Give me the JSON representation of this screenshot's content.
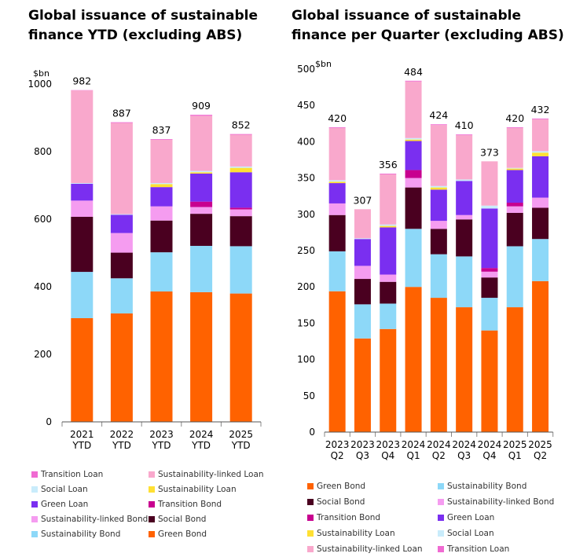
{
  "colors": {
    "Green Bond": "#ff6200",
    "Sustainability Bond": "#8dd8f8",
    "Social Bond": "#4a0020",
    "Sustainability-linked Bond": "#f59cf0",
    "Transition Bond": "#c8008f",
    "Green Loan": "#7a2ff0",
    "Sustainability Loan": "#ffe033",
    "Social Loan": "#c9ecfb",
    "Sustainability-linked Loan": "#f9a8cc",
    "Transition Loan": "#f06bd2"
  },
  "chart_data": [
    {
      "type": "bar",
      "stacked": true,
      "title": "Global issuance of sustainable finance YTD (excluding ABS)",
      "unit_label": "$bn",
      "categories": [
        [
          "2021",
          "YTD"
        ],
        [
          "2022",
          "YTD"
        ],
        [
          "2023",
          "YTD"
        ],
        [
          "2024",
          "YTD"
        ],
        [
          "2025",
          "YTD"
        ]
      ],
      "totals": [
        "982",
        "887",
        "837",
        "909",
        "852"
      ],
      "ylim": [
        0,
        1000
      ],
      "yticks": [
        0,
        200,
        400,
        600,
        800,
        1000
      ],
      "series": [
        {
          "name": "Green Bond",
          "values": [
            307,
            321,
            386,
            384,
            380
          ]
        },
        {
          "name": "Sustainability Bond",
          "values": [
            137,
            104,
            116,
            137,
            140
          ]
        },
        {
          "name": "Social Bond",
          "values": [
            163,
            76,
            94,
            95,
            89
          ]
        },
        {
          "name": "Sustainability-linked Bond",
          "values": [
            48,
            58,
            42,
            20,
            20
          ]
        },
        {
          "name": "Transition Bond",
          "values": [
            0,
            0,
            0,
            16,
            5
          ]
        },
        {
          "name": "Green Loan",
          "values": [
            50,
            54,
            57,
            83,
            105
          ]
        },
        {
          "name": "Sustainability Loan",
          "values": [
            0,
            0,
            9,
            4,
            13
          ]
        },
        {
          "name": "Social Loan",
          "values": [
            2,
            2,
            3,
            4,
            4
          ]
        },
        {
          "name": "Sustainability-linked Loan",
          "values": [
            274,
            270,
            128,
            163,
            94
          ]
        },
        {
          "name": "Transition Loan",
          "values": [
            1,
            2,
            2,
            3,
            2
          ]
        }
      ],
      "legend_title_order": [
        [
          "Transition Loan",
          "Sustainability-linked Loan"
        ],
        [
          "Social Loan",
          "Sustainability Loan"
        ],
        [
          "Green Loan",
          "Transition Bond"
        ],
        [
          "Sustainability-linked Bond",
          "Social Bond"
        ],
        [
          "Sustainability Bond",
          "Green Bond"
        ]
      ]
    },
    {
      "type": "bar",
      "stacked": true,
      "title": "Global issuance of sustainable finance per Quarter (excluding ABS)",
      "unit_label": "$bn",
      "categories": [
        [
          "2023",
          "Q2"
        ],
        [
          "2023",
          "Q3"
        ],
        [
          "2023",
          "Q4"
        ],
        [
          "2024",
          "Q1"
        ],
        [
          "2024",
          "Q2"
        ],
        [
          "2024",
          "Q3"
        ],
        [
          "2024",
          "Q4"
        ],
        [
          "2025",
          "Q1"
        ],
        [
          "2025",
          "Q2"
        ]
      ],
      "totals": [
        "420",
        "307",
        "356",
        "484",
        "424",
        "410",
        "373",
        "420",
        "432"
      ],
      "ylim": [
        0,
        500
      ],
      "yticks": [
        0,
        50,
        100,
        150,
        200,
        250,
        300,
        350,
        400,
        450,
        500
      ],
      "series": [
        {
          "name": "Green Bond",
          "values": [
            194,
            129,
            142,
            200,
            185,
            172,
            140,
            172,
            208
          ]
        },
        {
          "name": "Sustainability Bond",
          "values": [
            55,
            47,
            35,
            80,
            60,
            70,
            45,
            84,
            58
          ]
        },
        {
          "name": "Social Bond",
          "values": [
            50,
            35,
            30,
            57,
            35,
            51,
            28,
            46,
            43
          ]
        },
        {
          "name": "Sustainability-linked Bond",
          "values": [
            16,
            18,
            10,
            13,
            11,
            6,
            8,
            9,
            14
          ]
        },
        {
          "name": "Transition Bond",
          "values": [
            0,
            0,
            0,
            11,
            0,
            0,
            5,
            5,
            0
          ]
        },
        {
          "name": "Green Loan",
          "values": [
            28,
            37,
            65,
            40,
            43,
            47,
            82,
            45,
            57
          ]
        },
        {
          "name": "Sustainability Loan",
          "values": [
            2,
            0,
            2,
            2,
            3,
            0,
            0,
            2,
            5
          ]
        },
        {
          "name": "Social Loan",
          "values": [
            2,
            1,
            2,
            2,
            2,
            2,
            4,
            1,
            2
          ]
        },
        {
          "name": "Sustainability-linked Loan",
          "values": [
            72,
            40,
            69,
            78,
            84,
            61,
            61,
            55,
            44
          ]
        },
        {
          "name": "Transition Loan",
          "values": [
            1,
            0,
            1,
            1,
            1,
            1,
            0,
            1,
            1
          ]
        }
      ],
      "legend_title_order": [
        [
          "Green Bond",
          "Sustainability Bond"
        ],
        [
          "Social Bond",
          "Sustainability-linked Bond"
        ],
        [
          "Transition Bond",
          "Green Loan"
        ],
        [
          "Sustainability Loan",
          "Social Loan"
        ],
        [
          "Sustainability-linked Loan",
          "Transition Loan"
        ]
      ]
    }
  ],
  "titles": {
    "left": "Global issuance of sustainable finance YTD (excluding ABS)",
    "right": "Global issuance of sustainable finance per Quarter (excluding ABS)"
  }
}
